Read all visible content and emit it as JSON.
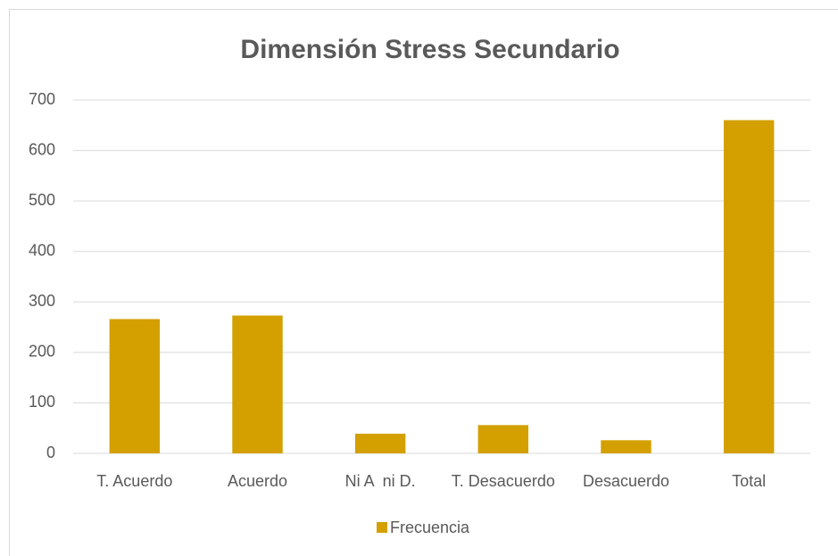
{
  "chart_data": {
    "type": "bar",
    "title": "Dimensión Stress Secundario",
    "categories": [
      "T. Acuerdo",
      "Acuerdo",
      "Ni A  ni D.",
      "T. Desacuerdo",
      "Desacuerdo",
      "Total"
    ],
    "series": [
      {
        "name": "Frecuencia",
        "color": "#d4a000",
        "values": [
          266,
          273,
          39,
          56,
          26,
          660
        ]
      }
    ],
    "ylim": [
      0,
      700
    ],
    "yticks": [
      0,
      100,
      200,
      300,
      400,
      500,
      600,
      700
    ],
    "grid": true,
    "legend": "bottom"
  }
}
